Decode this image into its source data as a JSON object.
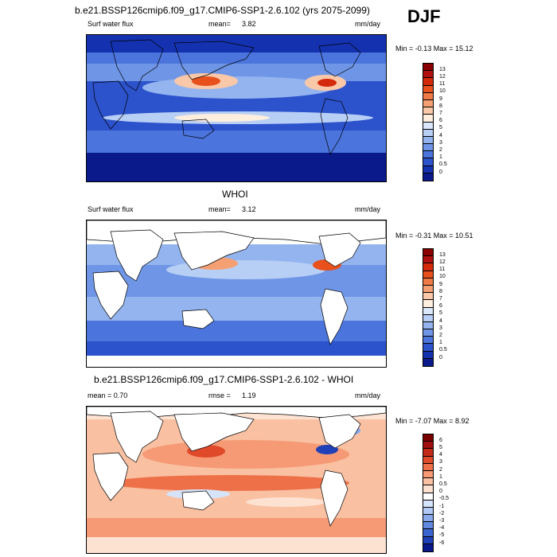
{
  "season": "DJF",
  "panels": [
    {
      "title": "b.e21.BSSP126cmip6.f09_g17.CMIP6-SSP1-2.6.102 (yrs 2075-2099)",
      "left_label": "Surf water flux",
      "stat_label": "mean=",
      "stat_value": "3.82",
      "units": "mm/day",
      "minmax": "Min =  -0.13 Max =  15.12",
      "colorbar_labels": [
        "13",
        "12",
        "11",
        "10",
        "9",
        "8",
        "7",
        "6",
        "5",
        "4",
        "3",
        "2",
        "1",
        "0.5",
        "0"
      ],
      "colorbar_colors": [
        "#8b0000",
        "#b01010",
        "#d42a0c",
        "#e8501c",
        "#f07a46",
        "#f5a072",
        "#f9c8a8",
        "#fdeedd",
        "#dbe8fb",
        "#b7cef5",
        "#93b4ef",
        "#6f96e6",
        "#4b74dc",
        "#2c52cc",
        "#1432b0",
        "#0a1a8a"
      ]
    },
    {
      "title": "WHOI",
      "left_label": "Surf water flux",
      "stat_label": "mean=",
      "stat_value": "3.12",
      "units": "mm/day",
      "minmax": "Min =  -0.31 Max =  10.51",
      "colorbar_labels": [
        "13",
        "12",
        "11",
        "10",
        "9",
        "8",
        "7",
        "6",
        "5",
        "4",
        "3",
        "2",
        "1",
        "0.5",
        "0"
      ],
      "colorbar_colors": [
        "#8b0000",
        "#b01010",
        "#d42a0c",
        "#e8501c",
        "#f07a46",
        "#f5a072",
        "#f9c8a8",
        "#fdeedd",
        "#dbe8fb",
        "#b7cef5",
        "#93b4ef",
        "#6f96e6",
        "#4b74dc",
        "#2c52cc",
        "#1432b0",
        "#0a1a8a"
      ]
    },
    {
      "title": "b.e21.BSSP126cmip6.f09_g17.CMIP6-SSP1-2.6.102 - WHOI",
      "left_label": "mean =   0.70",
      "stat_label": "rmse =",
      "stat_value": "1.19",
      "units": "mm/day",
      "minmax": "Min =  -7.07 Max =   8.92",
      "colorbar_labels": [
        "6",
        "5",
        "4",
        "3",
        "2",
        "1",
        "0.5",
        "0",
        "-0.5",
        "-1",
        "-2",
        "-3",
        "-4",
        "-5",
        "-6"
      ],
      "colorbar_colors": [
        "#7a0000",
        "#a01010",
        "#c52a18",
        "#e04a2a",
        "#ee7048",
        "#f59a74",
        "#f9c0a2",
        "#fde2d2",
        "#ffffff",
        "#d6e4fb",
        "#b0c8f3",
        "#88a8ea",
        "#6088df",
        "#3a64d0",
        "#2040b8",
        "#0a1a8a"
      ]
    }
  ]
}
